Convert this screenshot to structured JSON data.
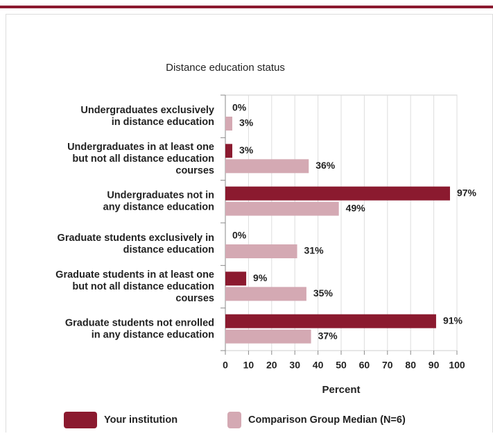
{
  "chart_data": {
    "type": "bar",
    "orientation": "horizontal",
    "title": "Distance education status",
    "categories": [
      [
        "Undergraduates exclusively",
        "in distance education"
      ],
      [
        "Undergraduates in at least one",
        "but not all distance education",
        "courses"
      ],
      [
        "Undergraduates not in",
        "any distance education"
      ],
      [
        "Graduate students exclusively in",
        "distance education"
      ],
      [
        "Graduate students in at least one",
        "but not all distance education",
        "courses"
      ],
      [
        "Graduate students not enrolled",
        "in any distance education"
      ]
    ],
    "series": [
      {
        "name": "Your institution",
        "color": "#8b1a2f",
        "values": [
          0,
          3,
          97,
          0,
          9,
          91
        ],
        "value_labels": [
          "0%",
          "3%",
          "97%",
          "0%",
          "9%",
          "91%"
        ]
      },
      {
        "name": "Comparison Group Median (N=6)",
        "color": "#d4a9b3",
        "values": [
          3,
          36,
          49,
          31,
          35,
          37
        ],
        "value_labels": [
          "3%",
          "36%",
          "49%",
          "31%",
          "35%",
          "37%"
        ]
      }
    ],
    "xlabel": "Percent",
    "xlim": [
      0,
      100
    ],
    "xticks": [
      0,
      10,
      20,
      30,
      40,
      50,
      60,
      70,
      80,
      90,
      100
    ],
    "grid": true
  }
}
